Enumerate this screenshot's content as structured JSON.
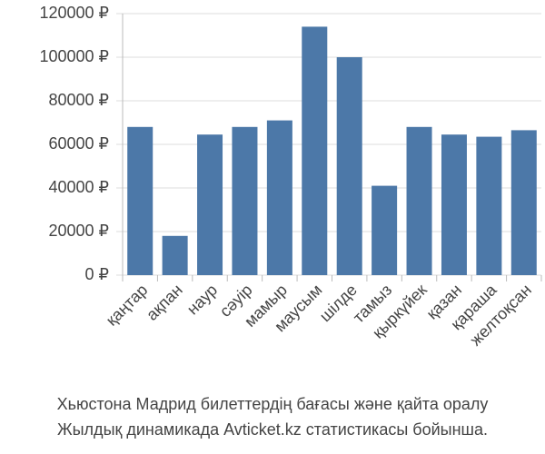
{
  "chart_data": {
    "type": "bar",
    "title": "Хьюстона Мадрид билеттердің бағасы және қайта оралу",
    "subtitle": "Жылдық динамикада Avticket.kz статистикасы бойынша.",
    "categories": [
      "қаңтар",
      "ақпан",
      "наур",
      "сәуір",
      "мамыр",
      "маусым",
      "шілде",
      "тамыз",
      "қыркүйек",
      "қазан",
      "қараша",
      "желтоқсан"
    ],
    "values": [
      68000,
      18000,
      64500,
      68000,
      71000,
      114000,
      100000,
      41000,
      68000,
      64500,
      63500,
      66500
    ],
    "color": "#4c78a8",
    "ylim": [
      0,
      120000
    ],
    "yticks": [
      {
        "value": 0,
        "label": "0 ₽"
      },
      {
        "value": 20000,
        "label": "20000 ₽"
      },
      {
        "value": 40000,
        "label": "40000 ₽"
      },
      {
        "value": 60000,
        "label": "60000 ₽"
      },
      {
        "value": 80000,
        "label": "80000 ₽"
      },
      {
        "value": 100000,
        "label": "100000 ₽"
      },
      {
        "value": 120000,
        "label": "120000 ₽"
      }
    ],
    "grid": true
  }
}
